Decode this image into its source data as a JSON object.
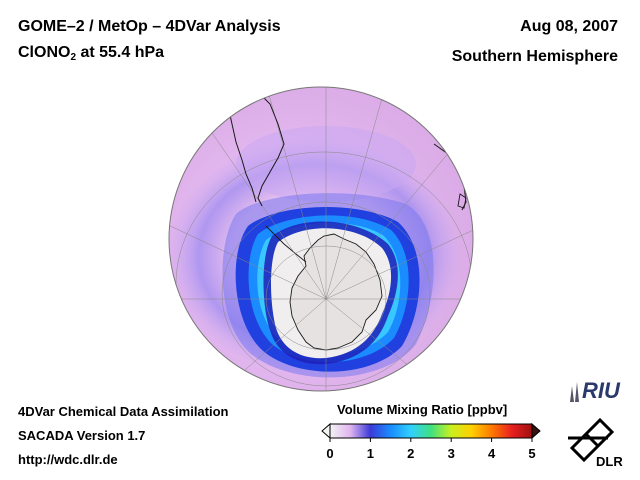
{
  "header": {
    "title_line1": "GOME–2 / MetOp – 4DVar Analysis",
    "species_base": "ClONO",
    "species_sub": "2",
    "species_suffix": " at 55.4 hPa",
    "date": "Aug 08, 2007",
    "region": "Southern Hemisphere"
  },
  "footer": {
    "line1": "4DVar Chemical Data Assimilation",
    "line2": "SACADA Version 1.7",
    "line3": "http://wdc.dlr.de"
  },
  "colorbar": {
    "label": "Volume Mixing Ratio [ppbv]",
    "ticks": [
      "0",
      "1",
      "2",
      "3",
      "4",
      "5"
    ],
    "min": 0,
    "max": 5,
    "colors": [
      "#f3f3f3",
      "#e0b6ee",
      "#3a3ad8",
      "#1a8cff",
      "#30d0ff",
      "#40e080",
      "#c8f020",
      "#ffd000",
      "#ff7a00",
      "#e82020",
      "#a01010"
    ],
    "under_color": "#f3f3f3",
    "over_color": "#3a1010"
  },
  "logos": {
    "riu": "RIU",
    "dlr": "DLR"
  },
  "map": {
    "projection": "orthographic, south polar",
    "background_field_color": "#efc8f2",
    "vortex_core_color": "#f0eeee"
  }
}
